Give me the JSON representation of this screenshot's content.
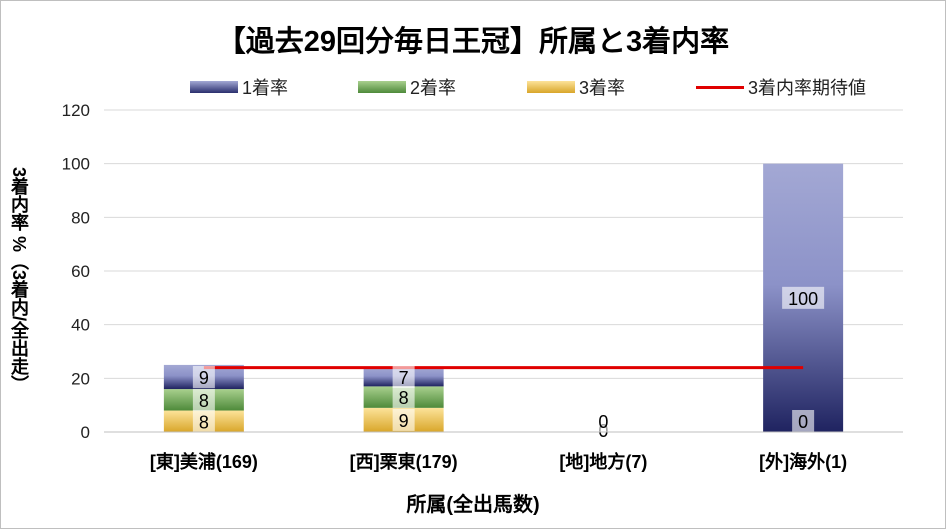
{
  "chart_data": {
    "type": "bar",
    "stacked": true,
    "title": "【過去29回分毎日王冠】所属と3着内率",
    "xlabel": "所属(全出馬数)",
    "ylabel": "3着内率 %（3着内/全出走）",
    "categories": [
      "[東]美浦(169)",
      "[西]栗東(179)",
      "[地]地方(7)",
      "[外]海外(1)"
    ],
    "series": [
      {
        "name": "3着率",
        "values": [
          8,
          9,
          0,
          0
        ],
        "labels": [
          "8",
          "9",
          "",
          ""
        ],
        "color": "#f0c040"
      },
      {
        "name": "2着率",
        "values": [
          8,
          8,
          0,
          0
        ],
        "labels": [
          "8",
          "8",
          "",
          ""
        ],
        "color": "#6aa84f"
      },
      {
        "name": "1着率",
        "values": [
          9,
          7,
          0,
          100
        ],
        "labels": [
          "9",
          "7",
          "0",
          "100"
        ],
        "color": "#2a2f6e"
      }
    ],
    "bottom_labels": [
      "",
      "",
      "0",
      "0"
    ],
    "expected_line": {
      "name": "3着内率期待値",
      "value": 24,
      "color": "#e00000"
    },
    "ylim": [
      0,
      120
    ],
    "yticks": [
      0,
      20,
      40,
      60,
      80,
      100,
      120
    ],
    "grid": true,
    "legend_position": "top"
  },
  "legend": {
    "first": "1着率",
    "second": "2着率",
    "third": "3着率",
    "line": "3着内率期待値"
  }
}
